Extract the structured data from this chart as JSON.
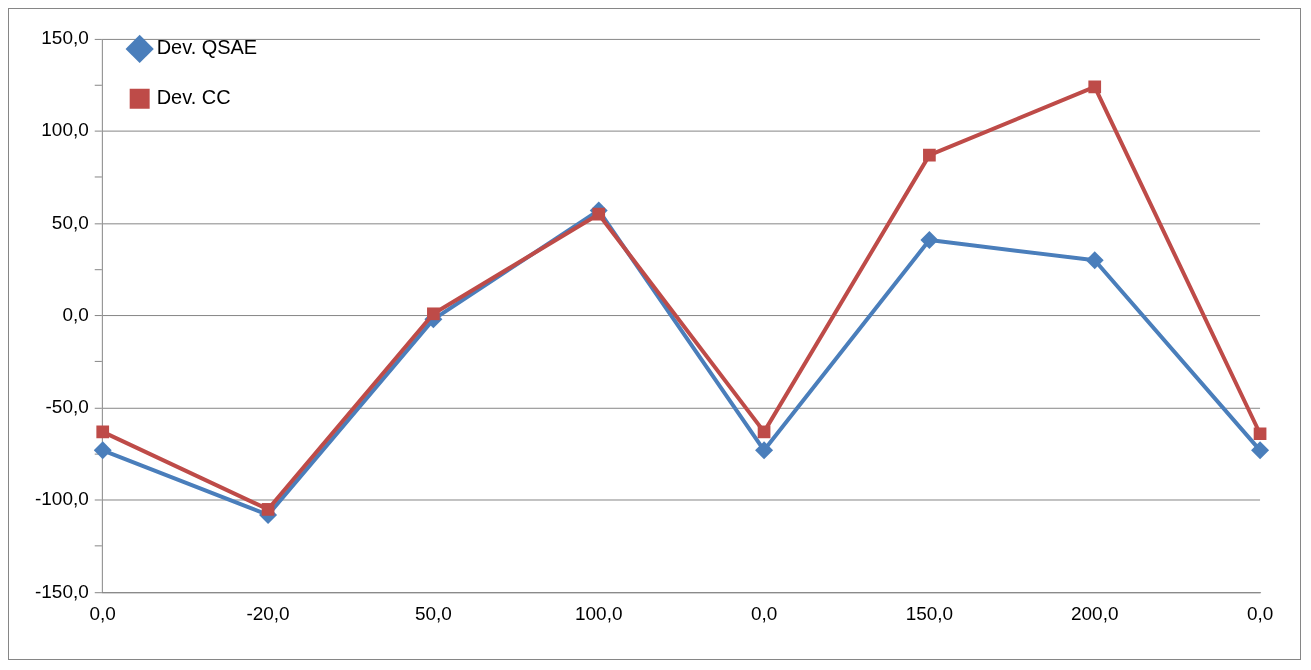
{
  "chart_data": {
    "type": "line",
    "categories": [
      "0,0",
      "-20,0",
      "50,0",
      "100,0",
      "0,0",
      "150,0",
      "200,0",
      "0,0"
    ],
    "series": [
      {
        "name": "Dev. QSAE",
        "color": "#4a7ebb",
        "marker": "diamond",
        "values": [
          -73,
          -108,
          -2,
          57,
          -73,
          41,
          30,
          -73
        ]
      },
      {
        "name": "Dev. CC",
        "color": "#be4b48",
        "marker": "square",
        "values": [
          -63,
          -105,
          1,
          55,
          -63,
          87,
          124,
          -64
        ]
      }
    ],
    "ylim": [
      -150,
      150
    ],
    "yticks": [
      {
        "value": -150,
        "label": "-150,0"
      },
      {
        "value": -125,
        "label": null
      },
      {
        "value": -100,
        "label": "-100,0"
      },
      {
        "value": -75,
        "label": null
      },
      {
        "value": -50,
        "label": "-50,0"
      },
      {
        "value": -25,
        "label": null
      },
      {
        "value": 0,
        "label": "0,0"
      },
      {
        "value": 25,
        "label": null
      },
      {
        "value": 50,
        "label": "50,0"
      },
      {
        "value": 75,
        "label": null
      },
      {
        "value": 100,
        "label": "100,0"
      },
      {
        "value": 125,
        "label": null
      },
      {
        "value": 150,
        "label": "150,0"
      }
    ],
    "grid": "y",
    "legend": "top left",
    "line_style": "solid"
  }
}
